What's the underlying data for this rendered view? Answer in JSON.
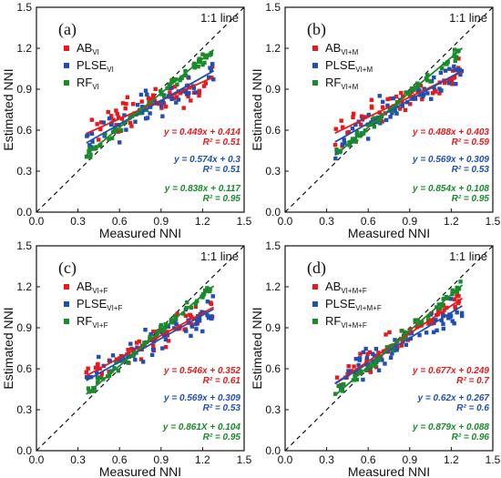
{
  "figure": {
    "xlabel": "Measured NNI",
    "ylabel": "Estimated NNI",
    "oneone_label": "1:1 line",
    "ticks": [
      "0.0",
      "0.3",
      "0.6",
      "0.9",
      "1.2",
      "1.5"
    ]
  },
  "colors": {
    "AB": "#e8191d",
    "PLSE": "#1f4fb3",
    "RF": "#1a8a2b"
  },
  "chart_data": [
    {
      "type": "scatter",
      "panel": "(a)",
      "xlabel": "Measured NNI",
      "ylabel": "Estimated NNI",
      "xlim": [
        0,
        1.5
      ],
      "ylim": [
        0,
        1.5
      ],
      "series": [
        {
          "name": "AB",
          "sub": "VI",
          "slope": 0.449,
          "intercept": 0.414,
          "eq": "y = 0.449x + 0.414",
          "r2": "R² = 0.51",
          "spread": 0.12
        },
        {
          "name": "PLSE",
          "sub": "VI",
          "slope": 0.574,
          "intercept": 0.3,
          "eq": "y = 0.574x + 0.3",
          "r2": "R² = 0.51",
          "spread": 0.12
        },
        {
          "name": "RF",
          "sub": "VI",
          "slope": 0.838,
          "intercept": 0.117,
          "eq": "y = 0.838x + 0.117",
          "r2": "R² = 0.95",
          "spread": 0.04
        }
      ]
    },
    {
      "type": "scatter",
      "panel": "(b)",
      "xlabel": "Measured NNI",
      "ylabel": "Estimated NNI",
      "xlim": [
        0,
        1.5
      ],
      "ylim": [
        0,
        1.5
      ],
      "series": [
        {
          "name": "AB",
          "sub": "VI+M",
          "slope": 0.488,
          "intercept": 0.403,
          "eq": "y = 0.488x + 0.403",
          "r2": "R² = 0.59",
          "spread": 0.11
        },
        {
          "name": "PLSE",
          "sub": "VI+M",
          "slope": 0.569,
          "intercept": 0.309,
          "eq": "y = 0.569x + 0.309",
          "r2": "R² = 0.53",
          "spread": 0.12
        },
        {
          "name": "RF",
          "sub": "VI+M",
          "slope": 0.854,
          "intercept": 0.108,
          "eq": "y = 0.854x + 0.108",
          "r2": "R² = 0.95",
          "spread": 0.04
        }
      ]
    },
    {
      "type": "scatter",
      "panel": "(c)",
      "xlabel": "Measured NNI",
      "ylabel": "Estimated NNI",
      "xlim": [
        0,
        1.5
      ],
      "ylim": [
        0,
        1.5
      ],
      "series": [
        {
          "name": "AB",
          "sub": "VI+F",
          "slope": 0.546,
          "intercept": 0.352,
          "eq": "y = 0.546x + 0.352",
          "r2": "R² = 0.61",
          "spread": 0.1
        },
        {
          "name": "PLSE",
          "sub": "VI+F",
          "slope": 0.569,
          "intercept": 0.309,
          "eq": "y = 0.569x + 0.309",
          "r2": "R² = 0.53",
          "spread": 0.12
        },
        {
          "name": "RF",
          "sub": "VI+F",
          "slope": 0.861,
          "intercept": 0.104,
          "eq": "y = 0.861X + 0.104",
          "r2": "R² = 0.95",
          "spread": 0.04
        }
      ]
    },
    {
      "type": "scatter",
      "panel": "(d)",
      "xlabel": "Measured NNI",
      "ylabel": "Estimated NNI",
      "xlim": [
        0,
        1.5
      ],
      "ylim": [
        0,
        1.5
      ],
      "series": [
        {
          "name": "AB",
          "sub": "VI+M+F",
          "slope": 0.677,
          "intercept": 0.249,
          "eq": "y = 0.677x + 0.249",
          "r2": "R² = 0.7",
          "spread": 0.09
        },
        {
          "name": "PLSE",
          "sub": "VI+M+F",
          "slope": 0.62,
          "intercept": 0.267,
          "eq": "y = 0.62x + 0.267",
          "r2": "R² = 0.6",
          "spread": 0.11
        },
        {
          "name": "RF",
          "sub": "VI+M+F",
          "slope": 0.879,
          "intercept": 0.088,
          "eq": "y = 0.879x + 0.088",
          "r2": "R² = 0.96",
          "spread": 0.04
        }
      ]
    }
  ]
}
